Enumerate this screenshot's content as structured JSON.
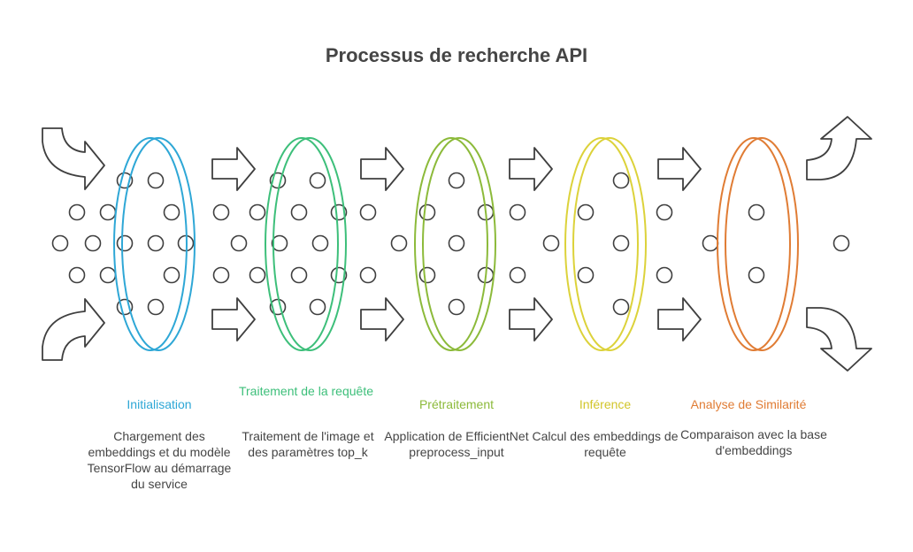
{
  "title": "Processus de recherche API",
  "colors": {
    "outline": "#3f3f3f",
    "initialisation": "#2ea7d6",
    "traitement": "#3dbf7a",
    "pretraitement": "#8cba3a",
    "inference": "#dcd23a",
    "analyse": "#e07c34"
  },
  "stages": [
    {
      "label": "Initialisation",
      "desc": "Chargement des embeddings et du modèle TensorFlow au démarrage du service"
    },
    {
      "label": "Traitement de la requête",
      "desc": "Traitement de l'image et des paramètres top_k"
    },
    {
      "label": "Prétraitement",
      "desc": "Application de EfficientNet preprocess_input"
    },
    {
      "label": "Inférence",
      "desc": "Calcul des embeddings de requête"
    },
    {
      "label": "Analyse de Similarité",
      "desc": "Comparaison avec la base d'embeddings"
    }
  ],
  "icons": [
    "curved-arrow-in-icon",
    "arrow-right-icon",
    "curved-arrow-out-icon"
  ]
}
